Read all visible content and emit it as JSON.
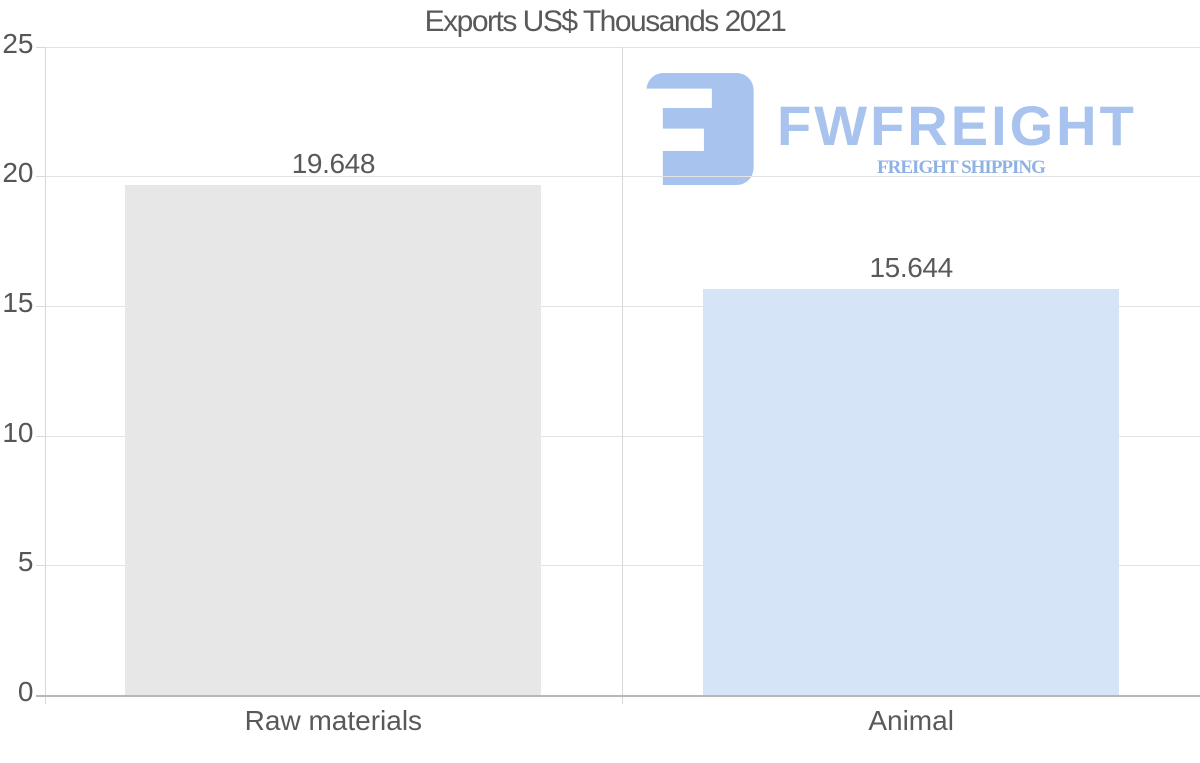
{
  "chart_data": {
    "type": "bar",
    "title": "Exports US$ Thousands 2021",
    "categories": [
      "Raw materials",
      "Animal"
    ],
    "values": [
      19.648,
      15.644
    ],
    "value_labels": [
      "19.648",
      "15.644"
    ],
    "bar_colors": [
      "#e7e7e7",
      "#d5e4f7"
    ],
    "xlabel": "",
    "ylabel": "",
    "ylim": [
      0,
      25
    ],
    "yticks": [
      0,
      5,
      10,
      15,
      20,
      25
    ],
    "ytick_labels": [
      "0",
      "5",
      "10",
      "15",
      "20",
      "25"
    ],
    "grid": true,
    "legend": "none"
  },
  "watermark": {
    "brand": "FWFREIGHT",
    "tagline": "FREIGHT SHIPPING",
    "mark_color": "#a7c3ee",
    "brand_color": "#a7c3ee",
    "tagline_color": "#8fb1e4"
  },
  "colors": {
    "background": "#ffffff",
    "gridline": "#e3e3e3",
    "axis_line": "#d8d8d8",
    "baseline": "#b7b7b7",
    "text": "#58595b"
  }
}
